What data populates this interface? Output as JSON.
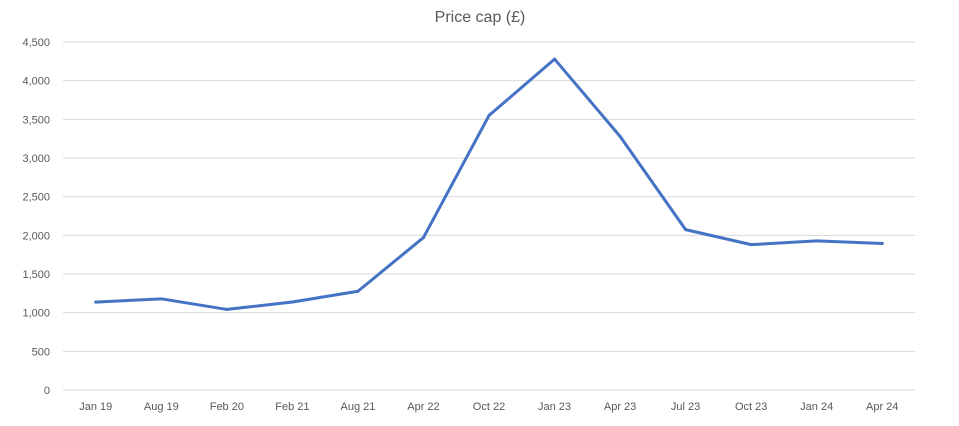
{
  "chart_data": {
    "type": "line",
    "title": "Price cap (£)",
    "xlabel": "",
    "ylabel": "",
    "categories": [
      "Jan 19",
      "Aug 19",
      "Feb 20",
      "Feb 21",
      "Aug 21",
      "Apr 22",
      "Oct 22",
      "Jan 23",
      "Apr 23",
      "Jul 23",
      "Oct 23",
      "Jan 24",
      "Apr 24"
    ],
    "series": [
      {
        "values": [
          1137,
          1179,
          1042,
          1138,
          1277,
          1971,
          3549,
          4279,
          3280,
          2074,
          1880,
          1928,
          1895
        ],
        "color": "#4472C4"
      }
    ],
    "ylim": [
      0,
      4500
    ],
    "yticks": [
      0,
      500,
      1000,
      1500,
      2000,
      2500,
      3000,
      3500,
      4000,
      4500
    ],
    "ytick_labels": [
      "0",
      "500",
      "1,000",
      "1,500",
      "2,000",
      "2,500",
      "3,000",
      "3,500",
      "4,000",
      "4,500"
    ],
    "grid": true,
    "legend": "none"
  }
}
